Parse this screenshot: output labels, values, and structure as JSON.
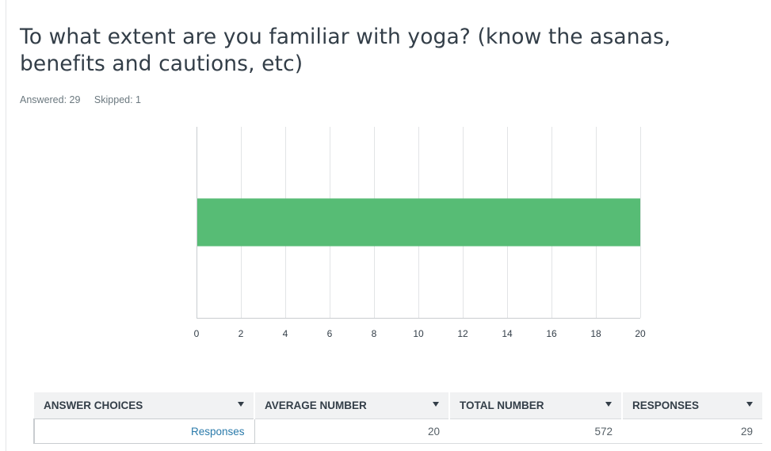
{
  "question": {
    "title": "To what extent are you familiar with yoga? (know the asanas, benefits and cautions, etc)",
    "answered": "Answered: 29",
    "skipped": "Skipped: 1"
  },
  "chart_data": {
    "type": "bar",
    "orientation": "horizontal",
    "categories": [
      "Responses"
    ],
    "values": [
      20
    ],
    "xlim": [
      0,
      20
    ],
    "x_ticks": [
      0,
      2,
      4,
      6,
      8,
      10,
      12,
      14,
      16,
      18,
      20
    ],
    "grid": true,
    "bar_color": "#57bc75",
    "title": "",
    "xlabel": "",
    "ylabel": ""
  },
  "table": {
    "headers": [
      "ANSWER CHOICES",
      "AVERAGE NUMBER",
      "TOTAL NUMBER",
      "RESPONSES"
    ],
    "rows": [
      {
        "choice": "Responses",
        "average": "20",
        "total": "572",
        "responses": "29"
      }
    ]
  },
  "colors": {
    "bar": "#57bc75",
    "gridline": "#e2e4e6",
    "link": "#2a7aaa",
    "header_bg": "#f1f2f3"
  }
}
